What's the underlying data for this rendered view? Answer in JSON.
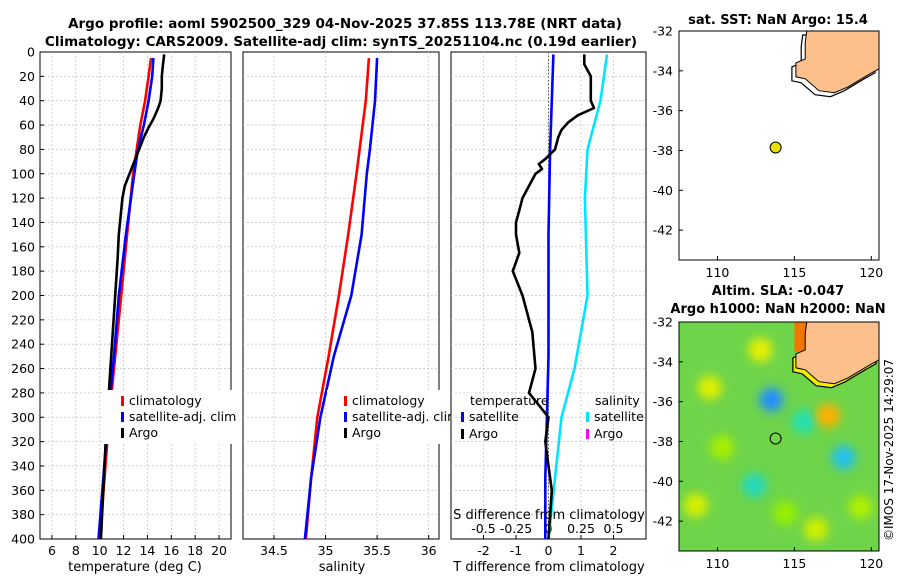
{
  "header": {
    "title_line1": "Argo profile: aoml 5902500_329 04-Nov-2025 37.85S 113.78E (NRT data)",
    "title_line2": "Climatology: CARS2009. Satellite-adj clim: synTS_20251104.nc (0.19d earlier)"
  },
  "watermark": "©IMOS 17-Nov-2025 14:29:07",
  "chart_data": [
    {
      "id": "temperature",
      "type": "line",
      "xlabel": "temperature (deg C)",
      "ylabel": "",
      "xlim": [
        5,
        21
      ],
      "ylim": [
        400,
        0
      ],
      "xticks": [
        "6",
        "8",
        "10",
        "12",
        "14",
        "16",
        "18",
        "20"
      ],
      "xtick_values": [
        6,
        8,
        10,
        12,
        14,
        16,
        18,
        20
      ],
      "yticks": [
        "0",
        "20",
        "40",
        "60",
        "80",
        "100",
        "120",
        "140",
        "160",
        "180",
        "200",
        "220",
        "240",
        "260",
        "280",
        "300",
        "320",
        "340",
        "360",
        "380",
        "400"
      ],
      "ytick_values": [
        0,
        20,
        40,
        60,
        80,
        100,
        120,
        140,
        160,
        180,
        200,
        220,
        240,
        260,
        280,
        300,
        320,
        340,
        360,
        380,
        400
      ],
      "grid": true,
      "legend": {
        "placement": "bottom-left",
        "items": [
          "climatology",
          "satellite-adj. clim",
          "Argo"
        ]
      },
      "series": [
        {
          "name": "climatology",
          "color": "#ff0000",
          "depth": [
            5,
            20,
            40,
            60,
            80,
            100,
            150,
            200,
            250,
            300,
            350,
            400
          ],
          "values": [
            14.3,
            14.1,
            13.8,
            13.4,
            13.1,
            12.8,
            12.3,
            11.8,
            11.3,
            10.8,
            10.4,
            10.0
          ]
        },
        {
          "name": "satellite-adj. clim",
          "color": "#0000ff",
          "depth": [
            5,
            20,
            40,
            60,
            80,
            100,
            150,
            200,
            250,
            300,
            350,
            400
          ],
          "values": [
            14.5,
            14.4,
            14.1,
            13.7,
            13.2,
            12.9,
            12.2,
            11.6,
            11.2,
            10.7,
            10.3,
            9.9
          ]
        },
        {
          "name": "Argo",
          "color": "#000000",
          "depth": [
            2,
            10,
            20,
            30,
            40,
            46,
            55,
            62,
            70,
            80,
            90,
            100,
            110,
            120,
            130,
            150,
            170,
            200,
            230,
            260,
            290,
            320,
            360,
            400
          ],
          "values": [
            15.4,
            15.3,
            15.2,
            15.2,
            15.1,
            14.9,
            14.5,
            14.1,
            13.7,
            13.3,
            12.9,
            12.5,
            12.1,
            11.9,
            11.8,
            11.6,
            11.5,
            11.3,
            11.1,
            10.9,
            10.7,
            10.5,
            10.3,
            10.1
          ]
        }
      ]
    },
    {
      "id": "salinity",
      "type": "line",
      "xlabel": "salinity",
      "xlim": [
        34.2,
        36.1
      ],
      "ylim": [
        400,
        0
      ],
      "xticks": [
        "34.5",
        "35",
        "35.5",
        "36"
      ],
      "xtick_values": [
        34.5,
        35,
        35.5,
        36
      ],
      "grid": true,
      "legend": {
        "placement": "bottom-left",
        "items": [
          "climatology",
          "satellite-adj. clim",
          "Argo"
        ]
      },
      "series": [
        {
          "name": "climatology",
          "color": "#ff0000",
          "depth": [
            5,
            40,
            80,
            100,
            150,
            200,
            250,
            300,
            350,
            400
          ],
          "values": [
            35.42,
            35.39,
            35.33,
            35.3,
            35.22,
            35.13,
            35.03,
            34.92,
            34.86,
            34.81
          ]
        },
        {
          "name": "satellite-adj. clim",
          "color": "#0000ff",
          "depth": [
            5,
            40,
            80,
            100,
            150,
            200,
            250,
            300,
            350,
            400
          ],
          "values": [
            35.5,
            35.48,
            35.43,
            35.4,
            35.35,
            35.25,
            35.08,
            34.95,
            34.86,
            34.8
          ]
        }
      ]
    },
    {
      "id": "difference",
      "type": "line",
      "xlabel": "T difference from climatology",
      "xlabel_top": "S difference from climatology",
      "xlim": [
        -3,
        3
      ],
      "ylim": [
        400,
        0
      ],
      "xticks": [
        "-2",
        "-1",
        "0",
        "1",
        "2"
      ],
      "xtick_values": [
        -2,
        -1,
        0,
        1,
        2
      ],
      "sticks": [
        "-0.5",
        "-0.25",
        "0",
        "0.25",
        "0.5"
      ],
      "stick_values": [
        -0.5,
        -0.25,
        0,
        0.25,
        0.5
      ],
      "grid": true,
      "legend_left": {
        "title": "temperature",
        "items": [
          "satellite",
          "Argo"
        ]
      },
      "legend_right": {
        "title": "salinity",
        "items": [
          "satellite",
          "Argo"
        ]
      },
      "series": [
        {
          "name": "temperature satellite",
          "color": "#0000ff",
          "depth": [
            2,
            40,
            80,
            150,
            250,
            300,
            350,
            400
          ],
          "values": [
            0.15,
            0.1,
            0.05,
            0.0,
            0.0,
            -0.05,
            -0.1,
            -0.1
          ]
        },
        {
          "name": "salinity satellite",
          "color": "#00e5ff",
          "depth": [
            2,
            40,
            80,
            120,
            200,
            260,
            300,
            350,
            400
          ],
          "values": [
            0.45,
            0.4,
            0.3,
            0.28,
            0.3,
            0.2,
            0.1,
            0.05,
            0.0
          ]
        },
        {
          "name": "temperature Argo",
          "color": "#000000",
          "depth": [
            2,
            10,
            20,
            30,
            40,
            46,
            52,
            58,
            64,
            70,
            80,
            88,
            92,
            96,
            100,
            110,
            120,
            130,
            140,
            150,
            165,
            180,
            200,
            230,
            260,
            280,
            290,
            300,
            320,
            340,
            360,
            400
          ],
          "values": [
            1.1,
            1.1,
            1.3,
            1.3,
            1.3,
            1.4,
            0.9,
            0.6,
            0.4,
            0.3,
            0.2,
            -0.1,
            -0.3,
            -0.2,
            -0.4,
            -0.6,
            -0.8,
            -0.9,
            -1.0,
            -1.0,
            -0.9,
            -1.1,
            -0.8,
            -0.5,
            -0.4,
            -0.6,
            -0.3,
            0.0,
            -0.1,
            0.0,
            0.1,
            0.0
          ]
        }
      ]
    },
    {
      "id": "sst_map",
      "type": "scatter",
      "title": "sat. SST: NaN Argo: 15.4",
      "xlim": [
        107.5,
        120.5
      ],
      "ylim": [
        -43.5,
        -32
      ],
      "xticks": [
        "110",
        "115",
        "120"
      ],
      "xtick_values": [
        110,
        115,
        120
      ],
      "yticks": [
        "-32",
        "-34",
        "-36",
        "-38",
        "-40",
        "-42"
      ],
      "ytick_values": [
        -32,
        -34,
        -36,
        -38,
        -40,
        -42
      ],
      "point": {
        "lon": 113.78,
        "lat": -37.85,
        "color": "#e8e000"
      }
    },
    {
      "id": "sla_map",
      "type": "heatmap",
      "title_line1": "Altim. SLA: -0.047",
      "title_line2": "Argo h1000: NaN h2000: NaN",
      "xlim": [
        107.5,
        120.5
      ],
      "ylim": [
        -43.5,
        -32
      ],
      "xticks": [
        "110",
        "115",
        "120"
      ],
      "xtick_values": [
        110,
        115,
        120
      ],
      "yticks": [
        "-32",
        "-34",
        "-36",
        "-38",
        "-40",
        "-42"
      ],
      "ytick_values": [
        -32,
        -34,
        -36,
        -38,
        -40,
        -42
      ],
      "point": {
        "lon": 113.78,
        "lat": -37.85
      },
      "blobs": [
        {
          "lon": 112.8,
          "lat": -33.4,
          "color": "#e8f000"
        },
        {
          "lon": 109.5,
          "lat": -35.3,
          "color": "#e0f000"
        },
        {
          "lon": 113.5,
          "lat": -35.9,
          "color": "#2090ff"
        },
        {
          "lon": 115.6,
          "lat": -37.0,
          "color": "#20e0b0"
        },
        {
          "lon": 117.2,
          "lat": -36.7,
          "color": "#ffb000"
        },
        {
          "lon": 118.2,
          "lat": -38.8,
          "color": "#20c0f0"
        },
        {
          "lon": 112.4,
          "lat": -40.2,
          "color": "#20d8c0"
        },
        {
          "lon": 108.6,
          "lat": -41.2,
          "color": "#d8f000"
        },
        {
          "lon": 116.4,
          "lat": -42.4,
          "color": "#d0f000"
        },
        {
          "lon": 110.3,
          "lat": -38.3,
          "color": "#a8f000"
        },
        {
          "lon": 119.3,
          "lat": -41.3,
          "color": "#b0f000"
        },
        {
          "lon": 114.4,
          "lat": -41.6,
          "color": "#98f000"
        }
      ]
    }
  ]
}
